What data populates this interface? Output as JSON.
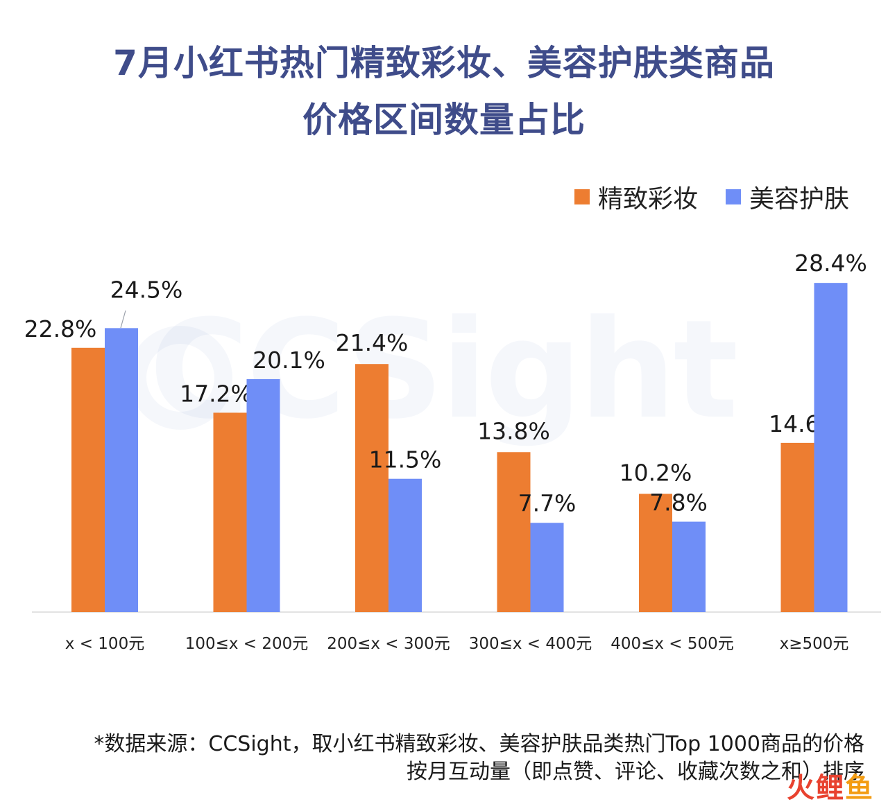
{
  "title": {
    "line1": "7月小红书热门精致彩妆、美容护肤类商品",
    "line2": "价格区间数量占比"
  },
  "legend": [
    {
      "label": "精致彩妆",
      "color": "#ed7d31"
    },
    {
      "label": "美容护肤",
      "color": "#6f8ef7"
    }
  ],
  "watermark": "CCSight",
  "chart_data": {
    "type": "bar",
    "title": "7月小红书热门精致彩妆、美容护肤类商品价格区间数量占比",
    "categories": [
      "x < 100元",
      "100≤x < 200元",
      "200≤x < 300元",
      "300≤x < 400元",
      "400≤x < 500元",
      "x≥500元"
    ],
    "series": [
      {
        "name": "精致彩妆",
        "color": "#ed7d31",
        "values": [
          22.8,
          17.2,
          21.4,
          13.8,
          10.2,
          14.6
        ],
        "labels": [
          "22.8%",
          "17.2%",
          "21.4%",
          "13.8%",
          "10.2%",
          "14.6%"
        ]
      },
      {
        "name": "美容护肤",
        "color": "#6f8ef7",
        "values": [
          24.5,
          20.1,
          11.5,
          7.7,
          7.8,
          28.4
        ],
        "labels": [
          "24.5%",
          "20.1%",
          "11.5%",
          "7.7%",
          "7.8%",
          "28.4%"
        ]
      }
    ],
    "ylim": [
      0,
      30
    ],
    "grid": false,
    "legend_position": "top-right"
  },
  "footnote": {
    "line1": "*数据来源：CCSight，取小红书精致彩妆、美容护肤品类热门Top 1000商品的价格",
    "line2": "按月互动量（即点赞、评论、收藏次数之和）排序"
  },
  "source_logo": {
    "chars": [
      "火",
      "鲤",
      "鱼"
    ],
    "colors": [
      "#e8422f",
      "#e8422f",
      "#f39c12"
    ]
  }
}
